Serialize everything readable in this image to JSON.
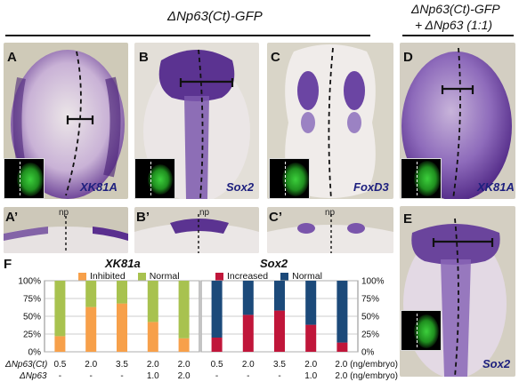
{
  "header": {
    "left_title": "ΔNp63(Ct)-GFP",
    "right_title_line1": "ΔNp63(Ct)-GFP",
    "right_title_line2": "+ ΔNp63 (1:1)"
  },
  "panels": {
    "A": {
      "label": "A",
      "gene": "XK81A"
    },
    "B": {
      "label": "B",
      "gene": "Sox2"
    },
    "C": {
      "label": "C",
      "gene": "FoxD3"
    },
    "D": {
      "label": "D",
      "gene": "XK81A"
    },
    "A2": {
      "label": "A’",
      "np": "np"
    },
    "B2": {
      "label": "B’",
      "np": "np"
    },
    "C2": {
      "label": "C’",
      "np": "np"
    },
    "E": {
      "label": "E",
      "gene": "Sox2"
    }
  },
  "figure_label": "F",
  "colors": {
    "inhibited": "#f7a04a",
    "normal_green": "#a8c24f",
    "increased": "#c0163a",
    "normal_blue": "#1c4a7a",
    "gene_text": "#1d1f7e"
  },
  "chart_data": [
    {
      "type": "bar",
      "title": "XK81a",
      "categories": [
        "0.5",
        "2.0",
        "3.5",
        "2.0",
        "2.0"
      ],
      "series": [
        {
          "name": "Inhibited",
          "values": [
            22,
            63,
            68,
            42,
            19
          ]
        },
        {
          "name": "Normal",
          "values": [
            78,
            37,
            32,
            58,
            81
          ]
        }
      ],
      "yticks": [
        "0%",
        "25%",
        "50%",
        "75%",
        "100%"
      ],
      "ylim": [
        0,
        100
      ],
      "stacked": true,
      "legend_position": "top"
    },
    {
      "type": "bar",
      "title": "Sox2",
      "categories": [
        "0.5",
        "2.0",
        "3.5",
        "2.0",
        "2.0"
      ],
      "series": [
        {
          "name": "Increased",
          "values": [
            20,
            52,
            58,
            38,
            13
          ]
        },
        {
          "name": "Normal",
          "values": [
            80,
            48,
            42,
            62,
            87
          ]
        }
      ],
      "yticks": [
        "0%",
        "25%",
        "50%",
        "75%",
        "100%"
      ],
      "ylim": [
        0,
        100
      ],
      "stacked": true,
      "legend_position": "top"
    }
  ],
  "dose_table": {
    "row1_label": "ΔNp63(Ct)",
    "row2_label": "ΔNp63",
    "row1_left": [
      "0.5",
      "2.0",
      "3.5",
      "2.0",
      "2.0"
    ],
    "row2_left": [
      "-",
      "-",
      "-",
      "1.0",
      "2.0"
    ],
    "row1_right": [
      "0.5",
      "2.0",
      "3.5",
      "2.0",
      "2.0 (ng/embryo)"
    ],
    "row2_right": [
      "-",
      "-",
      "-",
      "1.0",
      "2.0 (ng/embryo)"
    ],
    "right_axis_unit": "(ng/embryo)"
  }
}
